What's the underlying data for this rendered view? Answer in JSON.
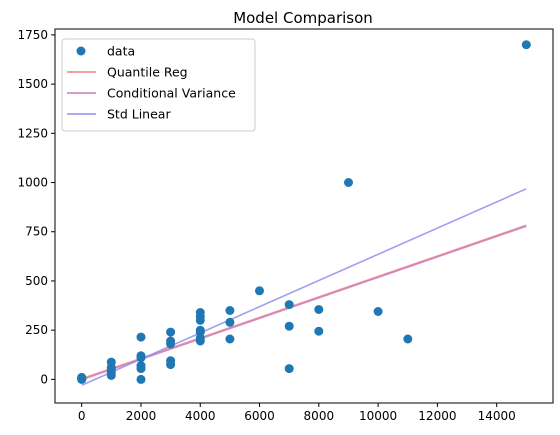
{
  "chart_data": {
    "type": "scatter",
    "title": "Model Comparison",
    "xlabel": "",
    "ylabel": "",
    "xlim": [
      -900,
      15900
    ],
    "ylim": [
      -120,
      1780
    ],
    "xticks": [
      0,
      2000,
      4000,
      6000,
      8000,
      10000,
      12000,
      14000
    ],
    "yticks": [
      0,
      250,
      500,
      750,
      1000,
      1250,
      1500,
      1750
    ],
    "grid": false,
    "legend_position": "top-left",
    "scatter": {
      "name": "data",
      "color": "#1f77b4",
      "points": [
        [
          0,
          0
        ],
        [
          0,
          3
        ],
        [
          0,
          5
        ],
        [
          0,
          8
        ],
        [
          0,
          10
        ],
        [
          0,
          2
        ],
        [
          0,
          6
        ],
        [
          1000,
          20
        ],
        [
          1000,
          35
        ],
        [
          1000,
          50
        ],
        [
          1000,
          60
        ],
        [
          1000,
          88
        ],
        [
          2000,
          0
        ],
        [
          2000,
          55
        ],
        [
          2000,
          70
        ],
        [
          2000,
          110
        ],
        [
          2000,
          120
        ],
        [
          2000,
          215
        ],
        [
          3000,
          75
        ],
        [
          3000,
          95
        ],
        [
          3000,
          180
        ],
        [
          3000,
          195
        ],
        [
          3000,
          240
        ],
        [
          4000,
          195
        ],
        [
          4000,
          210
        ],
        [
          4000,
          240
        ],
        [
          4000,
          250
        ],
        [
          4000,
          300
        ],
        [
          4000,
          320
        ],
        [
          4000,
          340
        ],
        [
          5000,
          205
        ],
        [
          5000,
          290
        ],
        [
          5000,
          350
        ],
        [
          6000,
          450
        ],
        [
          7000,
          55
        ],
        [
          7000,
          270
        ],
        [
          7000,
          380
        ],
        [
          8000,
          245
        ],
        [
          8000,
          355
        ],
        [
          9000,
          1000
        ],
        [
          10000,
          345
        ],
        [
          11000,
          205
        ],
        [
          15000,
          1700
        ]
      ]
    },
    "lines": [
      {
        "name": "Quantile Reg",
        "color": "#f08080",
        "x": [
          0,
          15000
        ],
        "y": [
          3,
          783
        ]
      },
      {
        "name": "Conditional Variance",
        "color": "#c77fbf",
        "x": [
          0,
          15000
        ],
        "y": [
          -2,
          778
        ]
      },
      {
        "name": "Std Linear",
        "color": "#8f8ff0",
        "x": [
          0,
          15000
        ],
        "y": [
          -30,
          968
        ]
      }
    ]
  }
}
